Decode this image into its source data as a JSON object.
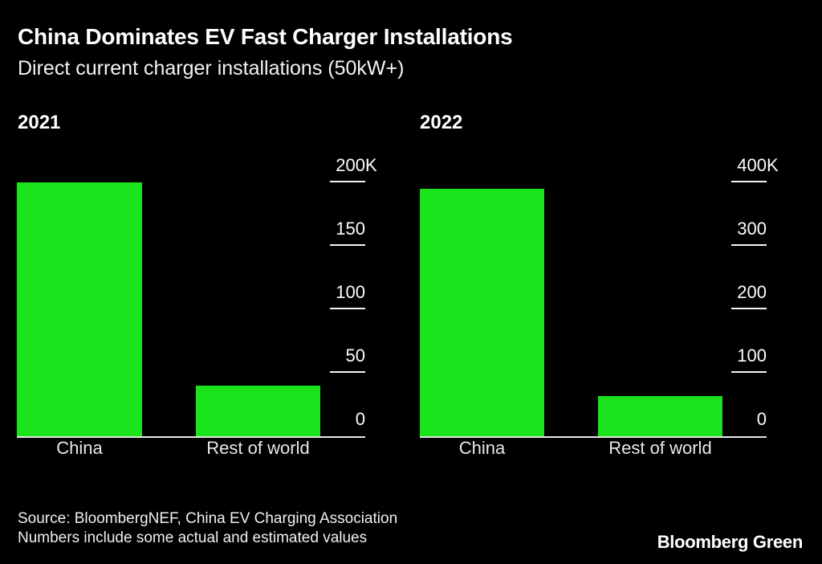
{
  "header": {
    "title": "China Dominates EV Fast Charger Installations",
    "subtitle": "Direct current charger installations (50kW+)"
  },
  "footer": {
    "source": "Source: BloombergNEF, China EV Charging Association",
    "note": "Numbers include some actual and estimated values",
    "brand": "Bloomberg Green"
  },
  "colors": {
    "background": "#000000",
    "bar_green": "#1BE31B",
    "text_primary": "#FFFFFF",
    "text_secondary": "#E8E8E8",
    "axis_line": "#E6E6E6"
  },
  "chart_data": [
    {
      "type": "bar",
      "title": "2021",
      "categories": [
        "China",
        "Rest of world"
      ],
      "values": [
        200,
        40
      ],
      "value_unit": "thousand chargers",
      "ylim": [
        0,
        200
      ],
      "grid": false,
      "legend_position": "none",
      "yticks": [
        {
          "value": 0,
          "label": "0"
        },
        {
          "value": 50,
          "label": "50"
        },
        {
          "value": 100,
          "label": "100"
        },
        {
          "value": 150,
          "label": "150"
        },
        {
          "value": 200,
          "label": "200",
          "suffix": "K"
        }
      ]
    },
    {
      "type": "bar",
      "title": "2022",
      "categories": [
        "China",
        "Rest of world"
      ],
      "values": [
        390,
        63
      ],
      "value_unit": "thousand chargers",
      "ylim": [
        0,
        400
      ],
      "grid": false,
      "legend_position": "none",
      "yticks": [
        {
          "value": 0,
          "label": "0"
        },
        {
          "value": 100,
          "label": "100"
        },
        {
          "value": 200,
          "label": "200"
        },
        {
          "value": 300,
          "label": "300"
        },
        {
          "value": 400,
          "label": "400",
          "suffix": "K"
        }
      ]
    }
  ]
}
